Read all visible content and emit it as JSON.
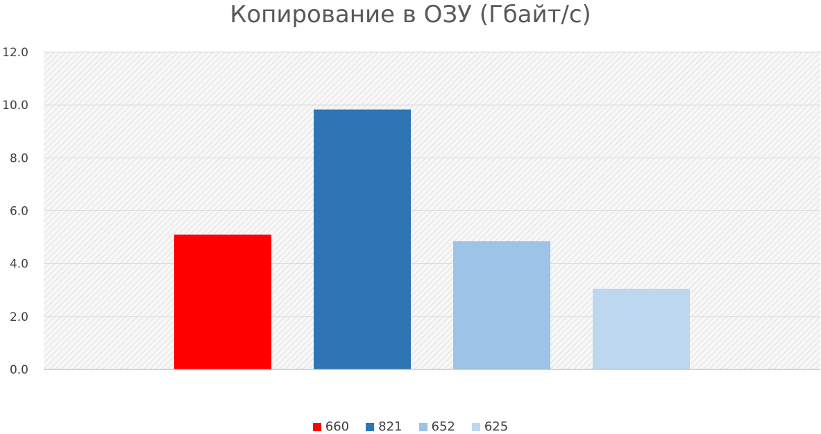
{
  "chart_data": {
    "type": "bar",
    "title": "Копирование в ОЗУ (Гбайт/с)",
    "xlabel": "",
    "ylabel": "",
    "ylim": [
      0,
      12
    ],
    "yticks": [
      "0.0",
      "2.0",
      "4.0",
      "6.0",
      "8.0",
      "10.0",
      "12.0"
    ],
    "grid": true,
    "legend_position": "bottom",
    "series": [
      {
        "name": "660",
        "value": 5.1,
        "color": "#ff0000"
      },
      {
        "name": "821",
        "value": 9.83,
        "color": "#2e75b6"
      },
      {
        "name": "652",
        "value": 4.85,
        "color": "#9dc3e6"
      },
      {
        "name": "625",
        "value": 3.05,
        "color": "#bdd7ee"
      }
    ]
  }
}
